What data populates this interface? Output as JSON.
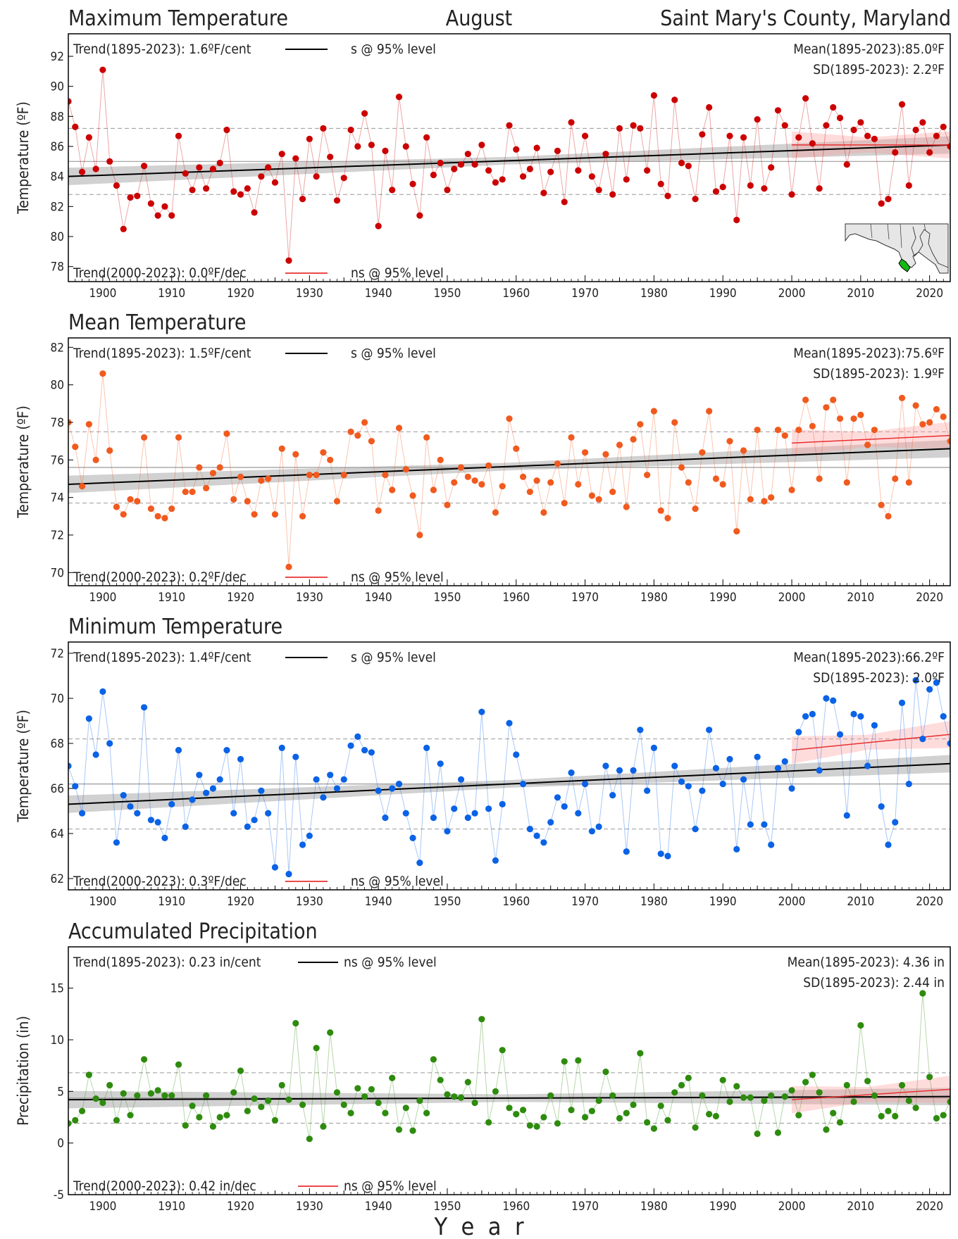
{
  "header": {
    "month": "August",
    "location": "Saint Mary's County, Maryland"
  },
  "xaxis_label": "Y  e  a  r",
  "colors": {
    "max": "#cc0000",
    "mean": "#f05a1e",
    "min": "#0a62e6",
    "precip": "#2e8b0e",
    "trend_long": "#000000",
    "trend_recent": "#e83030"
  },
  "map_inset": {
    "state": "Maryland",
    "highlight": "Saint Mary's County"
  },
  "chart_data": [
    {
      "type": "line",
      "title": "Maximum Temperature",
      "ylabel": "Temperature (ºF)",
      "ylim": [
        77,
        93.5
      ],
      "yticks": [
        78,
        80,
        82,
        84,
        86,
        88,
        90,
        92
      ],
      "xlim": [
        1895,
        2023
      ],
      "xticks": [
        1900,
        1910,
        1920,
        1930,
        1940,
        1950,
        1960,
        1970,
        1980,
        1990,
        2000,
        2010,
        2020
      ],
      "trend_long_text": "Trend(1895-2023):  1.6ºF/cent",
      "trend_long_sig": "s @ 95% level",
      "trend_recent_text": "Trend(2000-2023):  0.0ºF/dec",
      "trend_recent_sig": "ns @ 95% level",
      "mean_text": "Mean(1895-2023):85.0ºF",
      "sd_text": "SD(1895-2023): 2.2ºF",
      "mean": 85.0,
      "sd": 2.2,
      "trend_long": [
        84.0,
        86.1
      ],
      "trend_recent": [
        86.1,
        86.1
      ],
      "series": [
        {
          "x_start": 1895,
          "values": [
            89.0,
            87.3,
            84.3,
            86.6,
            84.5,
            91.1,
            85.0,
            83.4,
            80.5,
            82.6,
            82.7,
            84.7,
            82.2,
            81.4,
            82.0,
            81.4,
            86.7,
            84.2,
            83.1,
            84.6,
            83.2,
            84.5,
            84.9,
            87.1,
            83.0,
            82.8,
            83.2,
            81.6,
            84.0,
            84.6,
            83.6,
            85.5,
            78.4,
            85.2,
            82.5,
            86.5,
            84.0,
            87.2,
            85.3,
            82.4,
            83.9,
            87.1,
            86.0,
            88.2,
            86.1,
            80.7,
            85.7,
            83.1,
            89.3,
            86.0,
            83.5,
            81.4,
            86.6,
            84.1,
            84.9,
            83.1,
            84.5,
            84.8,
            85.5,
            84.8,
            86.1,
            84.4,
            83.6,
            83.8,
            87.4,
            85.8,
            84.0,
            84.5,
            85.9,
            82.9,
            84.3,
            85.7,
            82.3,
            87.6,
            84.4,
            86.7,
            84.0,
            83.1,
            85.5,
            82.8,
            87.2,
            83.8,
            87.4,
            87.2,
            84.4,
            89.4,
            83.5,
            82.7,
            89.1,
            84.9,
            84.7,
            82.5,
            86.8,
            88.6,
            83.0,
            83.3,
            86.7,
            81.1,
            86.6,
            83.4,
            87.8,
            83.2,
            84.6,
            88.4,
            87.4,
            82.8,
            86.6,
            89.2,
            86.2,
            83.2,
            87.4,
            88.6,
            87.9,
            84.8,
            87.1,
            87.6,
            86.7,
            86.5,
            82.2,
            82.5,
            85.6,
            88.8,
            83.4,
            87.1,
            87.6,
            85.6,
            86.7,
            87.3,
            86.0
          ]
        }
      ]
    },
    {
      "type": "line",
      "title": "Mean Temperature",
      "ylabel": "Temperature (ºF)",
      "ylim": [
        69.3,
        82.5
      ],
      "yticks": [
        70,
        72,
        74,
        76,
        78,
        80,
        82
      ],
      "xlim": [
        1895,
        2023
      ],
      "xticks": [
        1900,
        1910,
        1920,
        1930,
        1940,
        1950,
        1960,
        1970,
        1980,
        1990,
        2000,
        2010,
        2020
      ],
      "trend_long_text": "Trend(1895-2023):  1.5ºF/cent",
      "trend_long_sig": "s @ 95% level",
      "trend_recent_text": "Trend(2000-2023):  0.2ºF/dec",
      "trend_recent_sig": "ns @ 95% level",
      "mean_text": "Mean(1895-2023):75.6ºF",
      "sd_text": "SD(1895-2023): 1.9ºF",
      "mean": 75.6,
      "sd": 1.9,
      "trend_long": [
        74.7,
        76.6
      ],
      "trend_recent": [
        76.9,
        77.3
      ],
      "series": [
        {
          "x_start": 1895,
          "values": [
            78.0,
            76.7,
            74.6,
            77.9,
            76.0,
            80.6,
            76.5,
            73.5,
            73.1,
            73.9,
            73.8,
            77.2,
            73.4,
            73.0,
            72.9,
            73.4,
            77.2,
            74.3,
            74.3,
            75.6,
            74.5,
            75.3,
            75.6,
            77.4,
            73.9,
            75.1,
            73.8,
            73.1,
            74.9,
            75.0,
            73.1,
            76.6,
            70.3,
            76.3,
            73.0,
            75.2,
            75.2,
            76.4,
            76.0,
            73.8,
            75.2,
            77.5,
            77.3,
            78.0,
            77.0,
            73.3,
            75.2,
            74.4,
            77.7,
            75.5,
            74.1,
            72.0,
            77.2,
            74.4,
            76.0,
            73.6,
            74.8,
            75.6,
            75.1,
            74.9,
            74.7,
            75.7,
            73.2,
            74.6,
            78.2,
            76.6,
            75.1,
            74.3,
            74.9,
            73.2,
            74.8,
            75.8,
            73.7,
            77.2,
            74.7,
            76.4,
            74.1,
            73.9,
            76.3,
            74.3,
            76.8,
            73.5,
            77.1,
            77.9,
            75.2,
            78.6,
            73.3,
            72.9,
            78.0,
            75.6,
            74.8,
            73.4,
            76.4,
            78.6,
            75.0,
            74.7,
            77.0,
            72.2,
            76.5,
            73.9,
            77.6,
            73.8,
            74.0,
            77.6,
            77.3,
            74.4,
            77.6,
            79.2,
            77.8,
            75.0,
            78.8,
            79.2,
            78.2,
            74.8,
            78.2,
            78.4,
            76.8,
            77.6,
            73.6,
            73.0,
            75.0,
            79.3,
            74.8,
            78.9,
            77.9,
            78.0,
            78.7,
            78.3,
            77.0
          ]
        }
      ]
    },
    {
      "type": "line",
      "title": "Minimum Temperature",
      "ylabel": "Temperature (ºF)",
      "ylim": [
        61.5,
        72.5
      ],
      "yticks": [
        62,
        64,
        66,
        68,
        70,
        72
      ],
      "xlim": [
        1895,
        2023
      ],
      "xticks": [
        1900,
        1910,
        1920,
        1930,
        1940,
        1950,
        1960,
        1970,
        1980,
        1990,
        2000,
        2010,
        2020
      ],
      "trend_long_text": "Trend(1895-2023):  1.4ºF/cent",
      "trend_long_sig": "s @ 95% level",
      "trend_recent_text": "Trend(2000-2023):  0.3ºF/dec",
      "trend_recent_sig": "ns @ 95% level",
      "mean_text": "Mean(1895-2023):66.2ºF",
      "sd_text": "SD(1895-2023): 2.0ºF",
      "mean": 66.2,
      "sd": 2.0,
      "trend_long": [
        65.3,
        67.1
      ],
      "trend_recent": [
        67.7,
        68.4
      ],
      "series": [
        {
          "x_start": 1895,
          "values": [
            67.0,
            66.1,
            64.9,
            69.1,
            67.5,
            70.3,
            68.0,
            63.6,
            65.7,
            65.2,
            64.9,
            69.6,
            64.6,
            64.5,
            63.8,
            65.3,
            67.7,
            64.3,
            65.5,
            66.6,
            65.8,
            66.0,
            66.4,
            67.7,
            64.9,
            67.3,
            64.3,
            64.6,
            65.9,
            64.9,
            62.5,
            67.8,
            62.2,
            67.4,
            63.5,
            63.9,
            66.4,
            65.6,
            66.6,
            66.0,
            66.4,
            67.9,
            68.3,
            67.7,
            67.6,
            65.9,
            64.7,
            66.0,
            66.2,
            64.9,
            63.8,
            62.7,
            67.8,
            64.7,
            67.1,
            64.1,
            65.1,
            66.4,
            64.7,
            64.9,
            69.4,
            65.1,
            62.8,
            65.3,
            68.9,
            67.5,
            66.2,
            64.2,
            63.9,
            63.6,
            64.5,
            65.6,
            65.2,
            66.7,
            64.9,
            66.2,
            64.1,
            64.3,
            67.0,
            65.7,
            66.8,
            63.2,
            66.8,
            68.6,
            65.9,
            67.8,
            63.1,
            63.0,
            67.0,
            66.3,
            66.1,
            64.2,
            65.9,
            68.6,
            66.9,
            66.2,
            67.3,
            63.3,
            66.4,
            64.4,
            67.4,
            64.4,
            63.5,
            66.9,
            67.2,
            66.0,
            68.5,
            69.2,
            69.3,
            66.8,
            70.0,
            69.9,
            68.4,
            64.8,
            69.3,
            69.2,
            67.0,
            68.8,
            65.2,
            63.5,
            64.5,
            69.8,
            66.2,
            70.8,
            68.2,
            70.4,
            70.7,
            69.2,
            68.0
          ]
        }
      ]
    },
    {
      "type": "line",
      "title": "Accumulated Precipitation",
      "ylabel": "Precipitation (in)",
      "ylim": [
        -5,
        19
      ],
      "yticks": [
        -5,
        0,
        5,
        10,
        15
      ],
      "xlim": [
        1895,
        2023
      ],
      "xticks": [
        1900,
        1910,
        1920,
        1930,
        1940,
        1950,
        1960,
        1970,
        1980,
        1990,
        2000,
        2010,
        2020
      ],
      "trend_long_text": "Trend(1895-2023):  0.23 in/cent",
      "trend_long_sig": "ns @ 95% level",
      "trend_recent_text": "Trend(2000-2023):  0.42 in/dec",
      "trend_recent_sig": "ns @ 95% level",
      "mean_text": "Mean(1895-2023): 4.36 in",
      "sd_text": "SD(1895-2023): 2.44 in",
      "mean": 4.36,
      "sd": 2.44,
      "trend_long": [
        4.2,
        4.5
      ],
      "trend_recent": [
        4.2,
        5.2
      ],
      "series": [
        {
          "x_start": 1895,
          "values": [
            1.9,
            2.2,
            3.1,
            6.6,
            4.3,
            3.9,
            5.6,
            2.2,
            4.8,
            2.7,
            4.6,
            8.1,
            4.8,
            5.1,
            4.6,
            4.6,
            7.6,
            1.7,
            3.6,
            2.5,
            4.6,
            1.6,
            2.5,
            2.7,
            4.9,
            7.0,
            3.1,
            4.3,
            3.5,
            4.1,
            2.2,
            5.6,
            4.2,
            11.6,
            3.7,
            0.4,
            9.2,
            1.6,
            10.7,
            4.9,
            3.7,
            2.9,
            5.3,
            4.5,
            5.2,
            3.9,
            2.9,
            6.3,
            1.3,
            3.4,
            1.2,
            4.1,
            2.9,
            8.1,
            6.1,
            4.7,
            4.5,
            4.4,
            5.9,
            3.9,
            12.0,
            2.0,
            5.0,
            9.0,
            3.4,
            2.8,
            3.2,
            1.7,
            1.6,
            2.5,
            4.6,
            1.9,
            7.9,
            3.2,
            8.0,
            2.5,
            3.1,
            4.1,
            6.9,
            4.6,
            2.4,
            2.9,
            3.7,
            8.7,
            2.0,
            1.4,
            3.6,
            2.2,
            4.9,
            5.6,
            6.3,
            1.5,
            4.6,
            2.8,
            2.6,
            6.1,
            4.0,
            5.5,
            4.4,
            4.4,
            0.9,
            4.1,
            4.6,
            1.0,
            4.5,
            5.1,
            2.7,
            5.9,
            6.6,
            4.9,
            1.3,
            2.9,
            2.0,
            5.6,
            4.0,
            11.4,
            6.0,
            4.6,
            2.6,
            3.1,
            2.6,
            5.6,
            4.1,
            3.4,
            14.5,
            6.4,
            2.4,
            2.7,
            4.0
          ]
        }
      ]
    }
  ]
}
